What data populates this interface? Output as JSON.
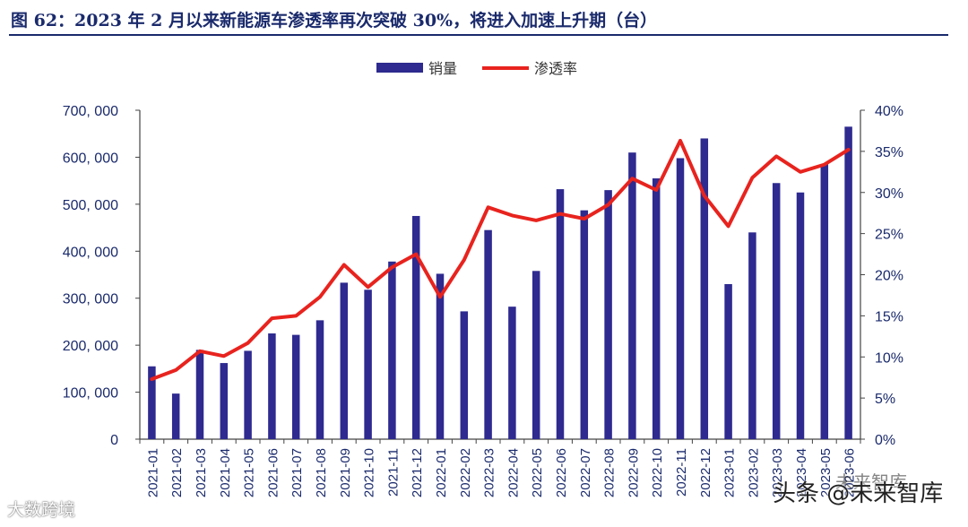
{
  "title": "图 62：2023 年 2 月以来新能源车渗透率再次突破 30%，将进入加速上升期（台）",
  "watermarks": {
    "left": "大数跨境",
    "right": "头条 @未来智库",
    "right_faint": "未来智库"
  },
  "colors": {
    "bar": "#2e2a8f",
    "line": "#e8231e",
    "axis_text": "#1a2a6c",
    "title": "#1a2a6c"
  },
  "chart_data": {
    "type": "bar+line",
    "categories": [
      "2021-01",
      "2021-02",
      "2021-03",
      "2021-04",
      "2021-05",
      "2021-06",
      "2021-07",
      "2021-08",
      "2021-09",
      "2021-10",
      "2021-11",
      "2021-12",
      "2022-01",
      "2022-02",
      "2022-03",
      "2022-04",
      "2022-05",
      "2022-06",
      "2022-07",
      "2022-08",
      "2022-09",
      "2022-10",
      "2022-11",
      "2022-12",
      "2023-01",
      "2023-02",
      "2023-03",
      "2023-04",
      "2023-05",
      "2023-06"
    ],
    "series": [
      {
        "name": "销量",
        "type": "bar",
        "axis": "left",
        "values": [
          155000,
          97000,
          190000,
          162000,
          188000,
          225000,
          222000,
          253000,
          333000,
          318000,
          378000,
          475000,
          352000,
          272000,
          445000,
          282000,
          358000,
          532000,
          487000,
          530000,
          610000,
          555000,
          598000,
          640000,
          330000,
          440000,
          545000,
          525000,
          585000,
          665000
        ]
      },
      {
        "name": "渗透率",
        "type": "line",
        "axis": "right",
        "values": [
          7.3,
          8.4,
          10.7,
          10.1,
          11.7,
          14.7,
          15.0,
          17.3,
          21.2,
          18.5,
          20.9,
          22.5,
          17.3,
          21.8,
          28.2,
          27.2,
          26.6,
          27.4,
          26.8,
          28.5,
          31.7,
          30.3,
          36.3,
          29.6,
          25.9,
          31.8,
          34.4,
          32.5,
          33.4,
          35.2
        ]
      }
    ],
    "y_left": {
      "ylim": [
        0,
        700000
      ],
      "ticks": [
        0,
        100000,
        200000,
        300000,
        400000,
        500000,
        600000,
        700000
      ],
      "tick_labels": [
        "0",
        "100, 000",
        "200, 000",
        "300, 000",
        "400, 000",
        "500, 000",
        "600, 000",
        "700, 000"
      ]
    },
    "y_right": {
      "ylim": [
        0,
        40
      ],
      "ticks": [
        0,
        5,
        10,
        15,
        20,
        25,
        30,
        35,
        40
      ],
      "tick_labels": [
        "0%",
        "5%",
        "10%",
        "15%",
        "20%",
        "25%",
        "30%",
        "35%",
        "40%"
      ]
    },
    "legend": {
      "position": "top-center",
      "entries": [
        "销量",
        "渗透率"
      ]
    },
    "grid": false
  }
}
